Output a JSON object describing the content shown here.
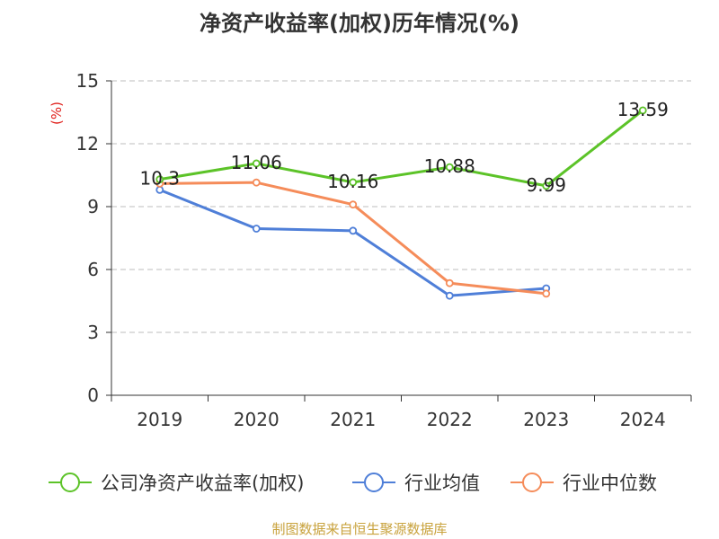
{
  "chart_data": {
    "type": "line",
    "title": "净资产收益率(加权)历年情况(%)",
    "ylabel": "(%)",
    "xlabel": "",
    "categories": [
      "2019",
      "2020",
      "2021",
      "2022",
      "2023",
      "2024"
    ],
    "ylim": [
      0,
      15
    ],
    "yticks": [
      0,
      3,
      6,
      9,
      12,
      15
    ],
    "grid": true,
    "legend_position": "bottom",
    "series": [
      {
        "name": "公司净资产收益率(加权)",
        "color": "#5cc328",
        "values": [
          10.3,
          11.06,
          10.16,
          10.88,
          9.99,
          13.59
        ],
        "labels": [
          "10.3",
          "11.06",
          "10.16",
          "10.88",
          "9.99",
          "13.59"
        ]
      },
      {
        "name": "行业均值",
        "color": "#4f7fd8",
        "values": [
          9.8,
          7.95,
          7.85,
          4.75,
          5.1,
          null
        ]
      },
      {
        "name": "行业中位数",
        "color": "#f58c5a",
        "values": [
          10.1,
          10.15,
          9.1,
          5.35,
          4.85,
          null
        ]
      }
    ],
    "source": "制图数据来自恒生聚源数据库"
  }
}
